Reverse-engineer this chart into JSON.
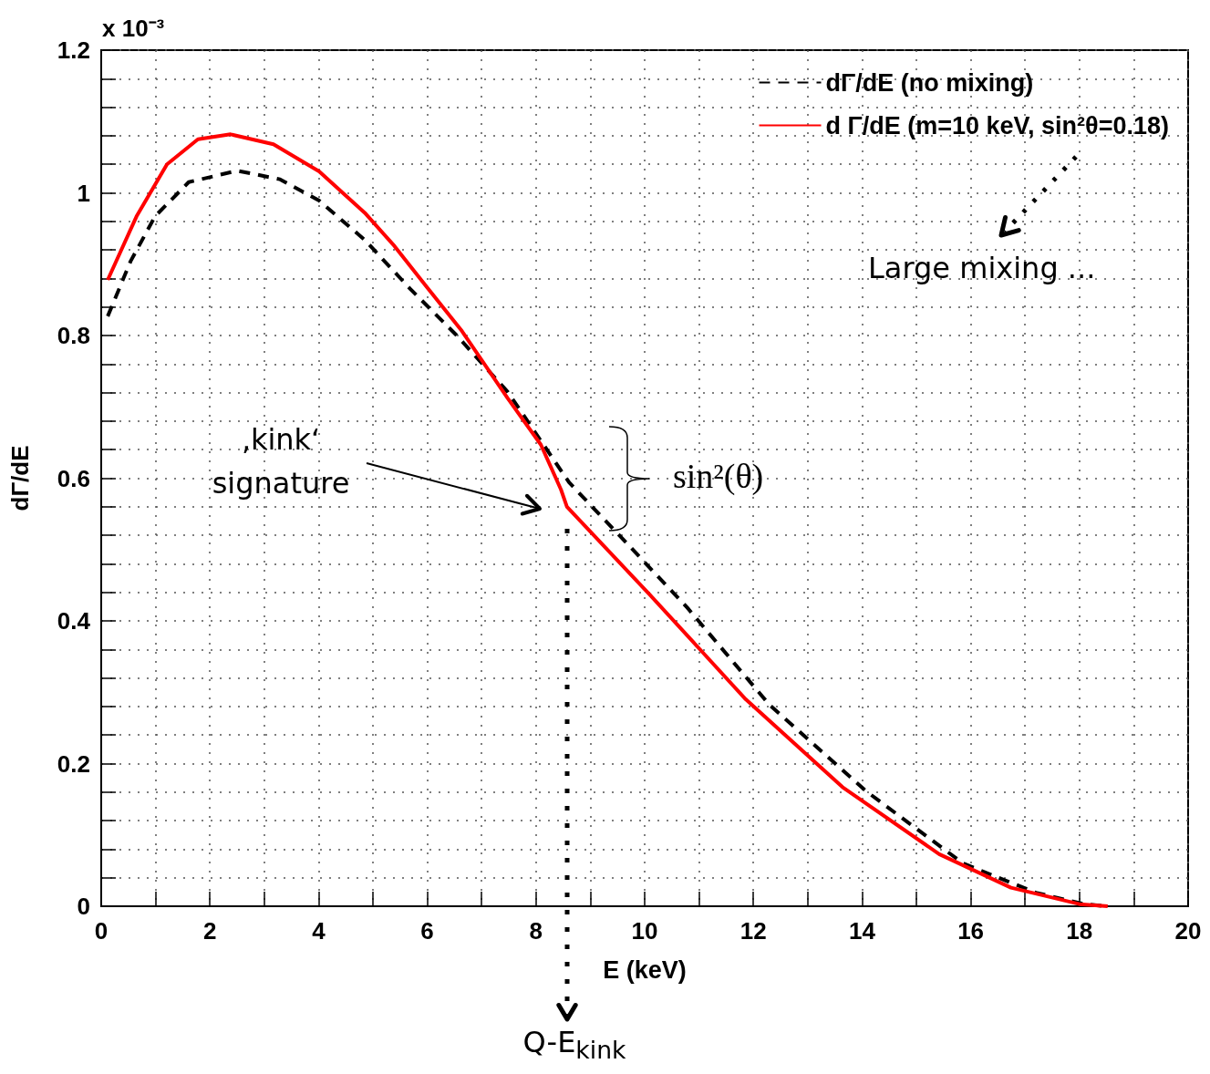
{
  "chart_data": {
    "type": "line",
    "xlabel": "E (keV)",
    "ylabel": "dΓ/dE",
    "xlim": [
      0,
      20
    ],
    "xticks": [
      0,
      2,
      4,
      6,
      8,
      10,
      12,
      14,
      16,
      18,
      20
    ],
    "ylim": [
      0,
      1.2
    ],
    "yticks": [
      0,
      0.2,
      0.4,
      0.6,
      0.8,
      1,
      1.2
    ],
    "grid": true,
    "legend": "top right",
    "marker": "none",
    "series": [
      {
        "name": "dΓ/dE (no mixing)",
        "color": "#000000",
        "line_style": "dashed",
        "x": [
          0.12,
          0.54,
          0.99,
          1.61,
          2.5,
          3.29,
          4.01,
          4.85,
          5.69,
          6.53,
          7.48,
          8.61,
          9.73,
          10.79,
          12.3,
          14.08,
          15.86,
          17.2,
          18.09,
          18.5
        ],
        "values": [
          0.827,
          0.904,
          0.967,
          1.015,
          1.031,
          1.019,
          0.989,
          0.934,
          0.865,
          0.801,
          0.721,
          0.594,
          0.504,
          0.418,
          0.282,
          0.161,
          0.06,
          0.019,
          0.003,
          0
        ]
      },
      {
        "name": "d Γ/dE (m=10 keV, sin²θ=0.18)",
        "color": "#ff0000",
        "line_style": "solid",
        "x": [
          0.12,
          0.65,
          1.21,
          1.78,
          2.38,
          3.17,
          4.01,
          4.85,
          5.4,
          5.97,
          6.64,
          7.48,
          8.09,
          8.46,
          8.57,
          10.08,
          11.86,
          13.64,
          15.42,
          16.74,
          18.0,
          18.52
        ],
        "values": [
          0.878,
          0.967,
          1.04,
          1.075,
          1.082,
          1.068,
          1.03,
          0.972,
          0.925,
          0.87,
          0.806,
          0.712,
          0.647,
          0.584,
          0.56,
          0.438,
          0.29,
          0.167,
          0.073,
          0.026,
          0.003,
          0
        ]
      }
    ],
    "annotations": [
      "x 10⁻³",
      "‚kink‘ signature",
      "sin²(θ)",
      "Large mixing ...",
      "Q-E$_{kink}$"
    ]
  }
}
